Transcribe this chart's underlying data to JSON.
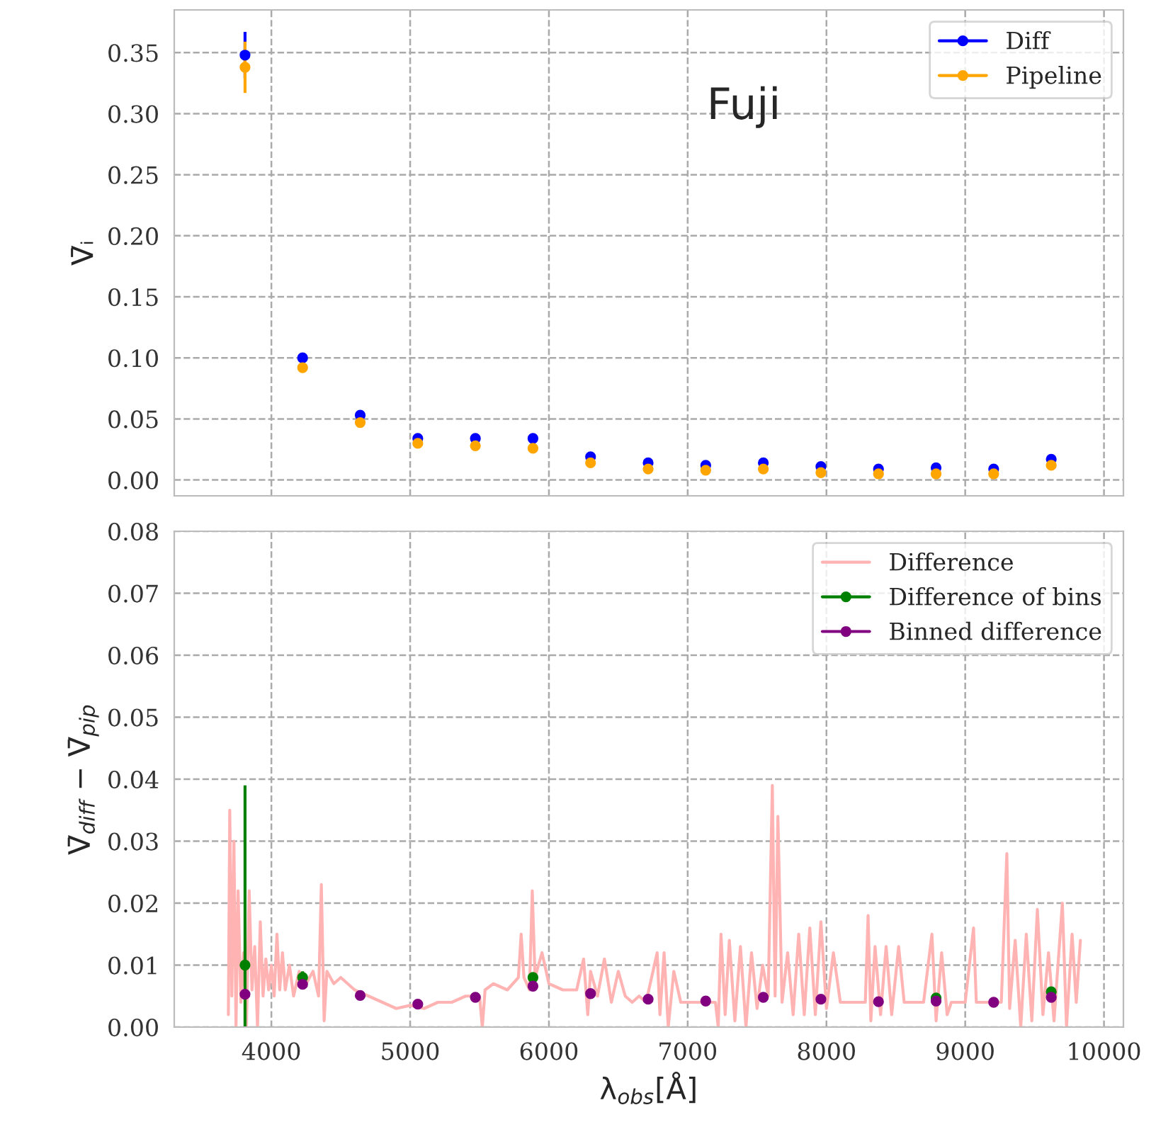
{
  "chart_data": [
    {
      "type": "scatter",
      "annotations": [
        "Fuji"
      ],
      "ylabel": "V̄ᵢ",
      "x": [
        3810,
        4225,
        4640,
        5055,
        5470,
        5885,
        6300,
        6715,
        7130,
        7545,
        7960,
        8375,
        8790,
        9205,
        9620
      ],
      "series": [
        {
          "name": "Diff",
          "color": "#0000ff",
          "values": [
            0.348,
            0.1,
            0.053,
            0.034,
            0.034,
            0.034,
            0.019,
            0.014,
            0.012,
            0.014,
            0.011,
            0.009,
            0.01,
            0.009,
            0.017
          ],
          "errors": [
            0.019,
            null,
            null,
            null,
            null,
            null,
            null,
            null,
            null,
            null,
            null,
            null,
            null,
            null,
            null
          ]
        },
        {
          "name": "Pipeline",
          "color": "#ffa500",
          "values": [
            0.338,
            0.092,
            0.047,
            0.03,
            0.028,
            0.026,
            0.014,
            0.009,
            0.008,
            0.009,
            0.006,
            0.005,
            0.005,
            0.005,
            0.012
          ],
          "errors": [
            0.021,
            null,
            null,
            null,
            null,
            null,
            null,
            null,
            null,
            null,
            null,
            null,
            null,
            null,
            null
          ]
        }
      ],
      "xlim": [
        3300,
        10140
      ],
      "xticks": [
        4000,
        5000,
        6000,
        7000,
        8000,
        9000,
        10000
      ],
      "ylim": [
        -0.013,
        0.385
      ],
      "yticks": [
        {
          "value": 0,
          "label": "0.00"
        },
        0.05,
        {
          "value": 0.1,
          "label": "0.10"
        },
        0.15,
        {
          "value": 0.2,
          "label": "0.20"
        },
        0.25,
        {
          "value": 0.3,
          "label": "0.30"
        },
        0.35
      ],
      "tick_labels": "y",
      "grid": true,
      "legend": "top right",
      "marker": "circle"
    },
    {
      "type": "scatter",
      "xlabel": "λ$_{obs}$[Å]",
      "ylabel": "V̄$_{diff}$ − V̄$_{pip}$",
      "x": [
        3810,
        4225,
        4640,
        5055,
        5470,
        5885,
        6300,
        6715,
        7130,
        7545,
        7960,
        8375,
        8790,
        9205,
        9620
      ],
      "series": [
        {
          "name": "Difference",
          "type": "line",
          "color": "#ffb3b3",
          "marker": "none",
          "x": [
            3690,
            3700,
            3715,
            3730,
            3745,
            3760,
            3780,
            3800,
            3820,
            3840,
            3860,
            3880,
            3900,
            3920,
            3940,
            3960,
            3980,
            4000,
            4020,
            4040,
            4060,
            4080,
            4100,
            4130,
            4160,
            4200,
            4250,
            4300,
            4340,
            4360,
            4380,
            4400,
            4450,
            4500,
            4600,
            4700,
            4800,
            4900,
            5000,
            5100,
            5200,
            5300,
            5400,
            5500,
            5520,
            5540,
            5600,
            5700,
            5780,
            5800,
            5820,
            5860,
            5880,
            5900,
            5950,
            6000,
            6100,
            6200,
            6250,
            6280,
            6300,
            6350,
            6400,
            6450,
            6500,
            6550,
            6600,
            6650,
            6700,
            6780,
            6800,
            6830,
            6860,
            6900,
            6950,
            7100,
            7200,
            7220,
            7240,
            7270,
            7300,
            7340,
            7380,
            7420,
            7460,
            7500,
            7540,
            7580,
            7610,
            7630,
            7650,
            7680,
            7720,
            7760,
            7800,
            7840,
            7880,
            7920,
            7960,
            8000,
            8050,
            8100,
            8200,
            8280,
            8300,
            8320,
            8350,
            8390,
            8430,
            8470,
            8520,
            8560,
            8600,
            8700,
            8760,
            8790,
            8830,
            8870,
            8900,
            9000,
            9060,
            9080,
            9200,
            9260,
            9300,
            9320,
            9360,
            9400,
            9440,
            9480,
            9520,
            9560,
            9600,
            9640,
            9700,
            9730,
            9770,
            9800,
            9830
          ],
          "values": [
            0.002,
            0.035,
            0.005,
            0.03,
            0.0,
            0.022,
            0.004,
            0.012,
            0.0,
            0.022,
            0.006,
            0.013,
            0.0,
            0.017,
            0.005,
            0.011,
            0.006,
            0.01,
            0.005,
            0.015,
            0.006,
            0.012,
            0.006,
            0.01,
            0.005,
            0.009,
            0.007,
            0.009,
            0.005,
            0.023,
            0.001,
            0.009,
            0.007,
            0.008,
            0.006,
            0.005,
            0.004,
            0.003,
            0.0035,
            0.003,
            0.004,
            0.004,
            0.005,
            0.005,
            0.0,
            0.006,
            0.007,
            0.006,
            0.008,
            0.015,
            0.008,
            0.006,
            0.022,
            0.008,
            0.012,
            0.007,
            0.006,
            0.006,
            0.011,
            0.002,
            0.009,
            0.005,
            0.011,
            0.004,
            0.009,
            0.005,
            0.004,
            0.005,
            0.004,
            0.012,
            0.002,
            0.012,
            0.0,
            0.009,
            0.004,
            0.004,
            0.004,
            0.0,
            0.015,
            0.002,
            0.014,
            0.001,
            0.013,
            0.0,
            0.012,
            0.003,
            0.01,
            0.005,
            0.039,
            0.005,
            0.034,
            0.004,
            0.012,
            0.002,
            0.015,
            0.002,
            0.016,
            0.002,
            0.017,
            0.003,
            0.012,
            0.004,
            0.004,
            0.004,
            0.018,
            0.001,
            0.013,
            0.002,
            0.013,
            0.002,
            0.013,
            0.004,
            0.004,
            0.004,
            0.015,
            0.001,
            0.012,
            0.002,
            0.004,
            0.004,
            0.016,
            0.004,
            0.004,
            0.004,
            0.028,
            0.003,
            0.014,
            0.0,
            0.015,
            0.001,
            0.019,
            0.002,
            0.012,
            0.001,
            0.02,
            0.0,
            0.015,
            0.004,
            0.014
          ]
        },
        {
          "name": "Difference of bins",
          "color": "#008000",
          "values": [
            0.01,
            0.008,
            null,
            null,
            null,
            0.008,
            null,
            null,
            null,
            null,
            null,
            null,
            0.0047,
            null,
            0.0057
          ],
          "errors": [
            [
              0.0,
              0.039
            ],
            0.001,
            null,
            null,
            null,
            null,
            null,
            null,
            null,
            null,
            null,
            null,
            null,
            null,
            null
          ]
        },
        {
          "name": "Binned difference",
          "color": "#800080",
          "values": [
            0.0053,
            0.0069,
            0.0051,
            0.0037,
            0.0048,
            0.0066,
            0.0054,
            0.0045,
            0.0042,
            0.0048,
            0.0045,
            0.0041,
            0.0042,
            0.004,
            0.0048
          ]
        }
      ],
      "xlim": [
        3300,
        10140
      ],
      "xticks": [
        4000,
        5000,
        6000,
        7000,
        8000,
        9000,
        10000
      ],
      "ylim": [
        0.0,
        0.08
      ],
      "yticks": [
        {
          "value": 0,
          "label": "0.00"
        },
        0.01,
        0.02,
        0.03,
        0.04,
        0.05,
        0.06,
        0.07,
        0.08
      ],
      "grid": true,
      "legend": "top right",
      "marker": "circle"
    }
  ]
}
